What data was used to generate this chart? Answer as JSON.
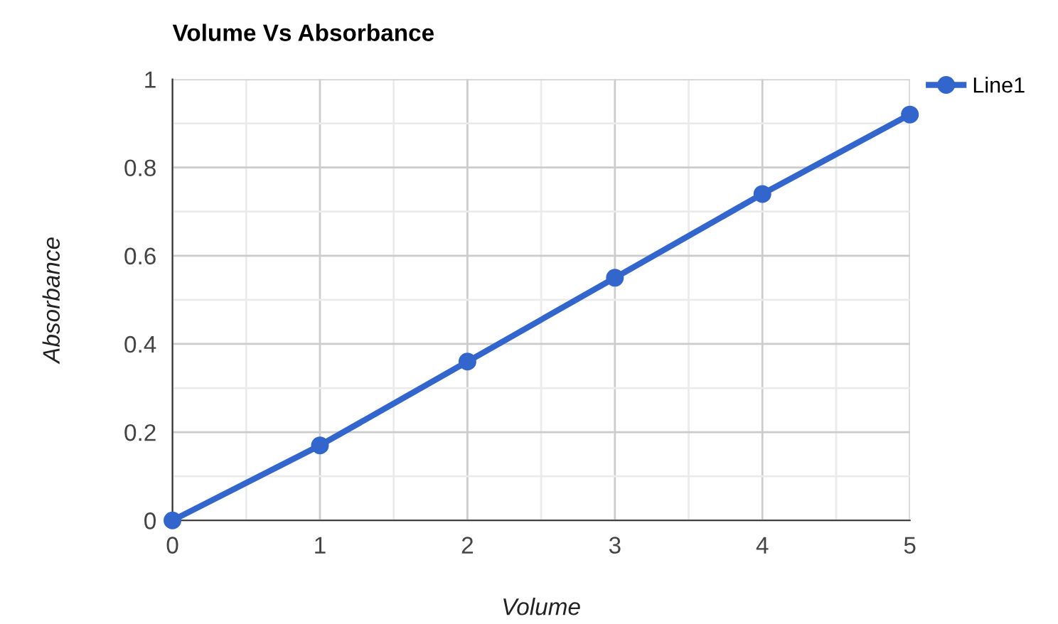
{
  "chart_data": {
    "type": "line",
    "title": "Volume Vs Absorbance",
    "xlabel": "Volume",
    "ylabel": "Absorbance",
    "x": [
      0,
      1,
      2,
      3,
      4,
      5
    ],
    "series": [
      {
        "name": "Line1",
        "color": "#3366cc",
        "values": [
          0,
          0.17,
          0.36,
          0.55,
          0.74,
          0.92
        ]
      }
    ],
    "xlim": [
      0,
      5
    ],
    "ylim": [
      0,
      1
    ],
    "xticks": [
      0,
      1,
      2,
      3,
      4,
      5
    ],
    "yticks": [
      0,
      0.2,
      0.4,
      0.6,
      0.8,
      1
    ],
    "grid": true,
    "legend": "top right",
    "marker": "circle",
    "line_style": "solid"
  }
}
